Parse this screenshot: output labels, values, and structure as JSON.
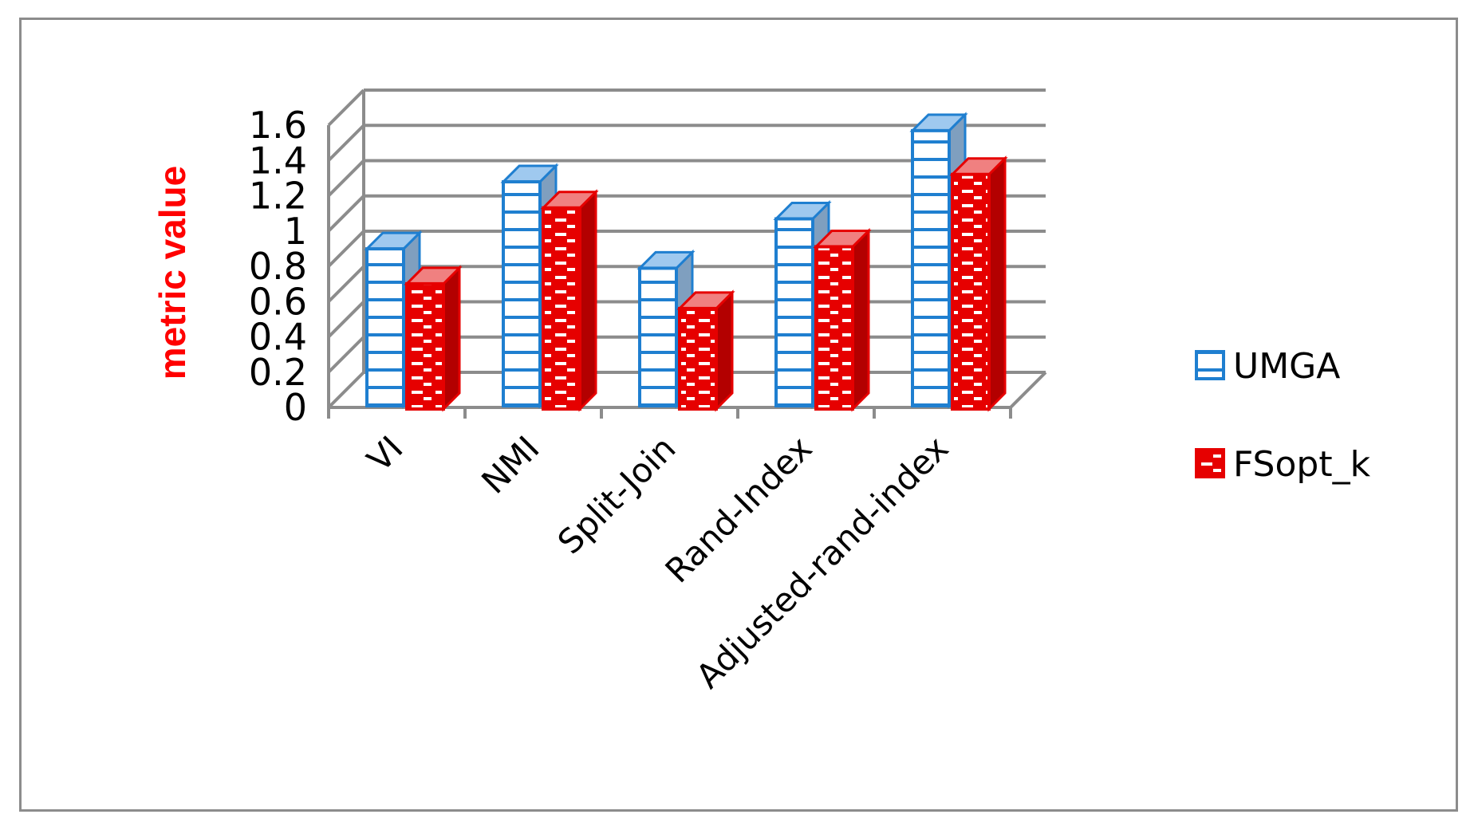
{
  "chart_data": {
    "type": "bar",
    "style": "3d-clustered-column",
    "title": "",
    "xlabel": "",
    "ylabel": "metric value",
    "categories": [
      "VI",
      "NMI",
      "Split-Join",
      "Rand-Index",
      "Adjusted-rand-index"
    ],
    "series": [
      {
        "name": "UMGA",
        "values": [
          0.89,
          1.27,
          0.78,
          1.06,
          1.56
        ],
        "color": "#1f7fd0",
        "pattern": "horizontal-lines"
      },
      {
        "name": "FSopt_k",
        "values": [
          0.71,
          1.14,
          0.57,
          0.92,
          1.33
        ],
        "color": "#e60000",
        "pattern": "dashed-bricks"
      }
    ],
    "ylim": [
      0,
      1.6
    ],
    "yticks": [
      "0",
      "0.2",
      "0.4",
      "0.6",
      "0.8",
      "1",
      "1.2",
      "1.4",
      "1.6"
    ],
    "grid": true,
    "legend_position": "right",
    "label_color": "#ff0000",
    "grid_color": "#8c8c8c"
  }
}
